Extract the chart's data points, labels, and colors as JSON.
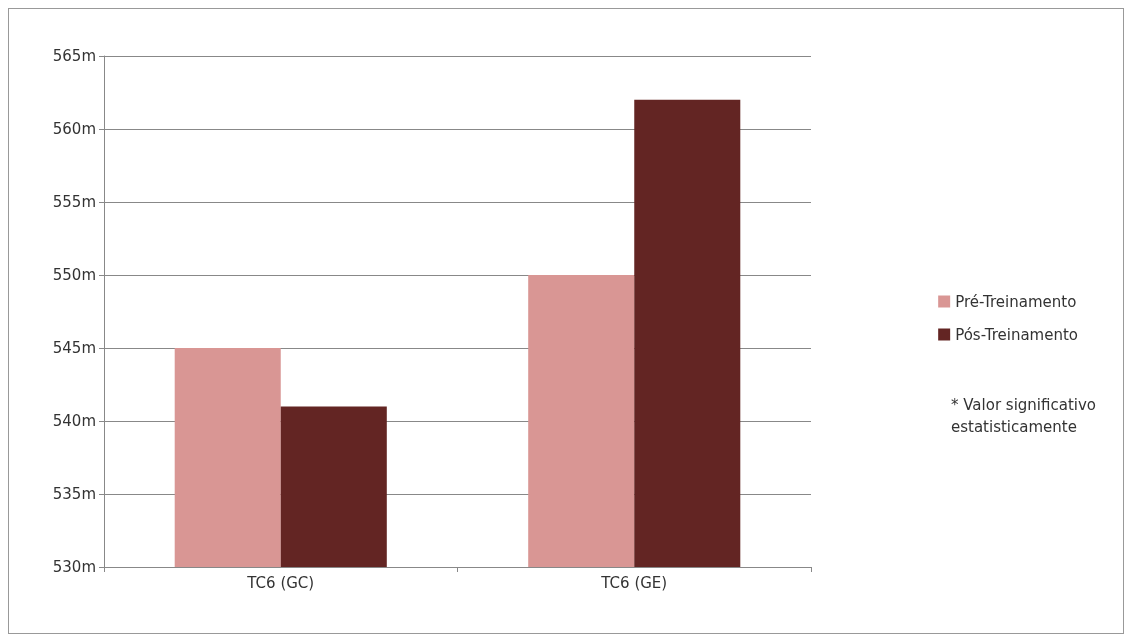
{
  "chart_data": {
    "type": "bar",
    "categories": [
      "TC6 (GC)",
      "TC6 (GE)"
    ],
    "series": [
      {
        "name": "Pré-Treinamento",
        "color": "#d99694",
        "values": [
          545,
          550
        ]
      },
      {
        "name": "Pós-Treinamento",
        "color": "#632523",
        "values": [
          541,
          562
        ]
      }
    ],
    "ylim": [
      530,
      565
    ],
    "yticks": [
      {
        "value": 530,
        "label": "530m"
      },
      {
        "value": 535,
        "label": "535m"
      },
      {
        "value": 540,
        "label": "540m"
      },
      {
        "value": 545,
        "label": "545m"
      },
      {
        "value": 550,
        "label": "550m"
      },
      {
        "value": 555,
        "label": "555m"
      },
      {
        "value": 560,
        "label": "560m"
      },
      {
        "value": 565,
        "label": "565m"
      }
    ],
    "grid": "y",
    "legend": "right",
    "annotations": [
      "* Valor significativo estatisticamente"
    ]
  }
}
